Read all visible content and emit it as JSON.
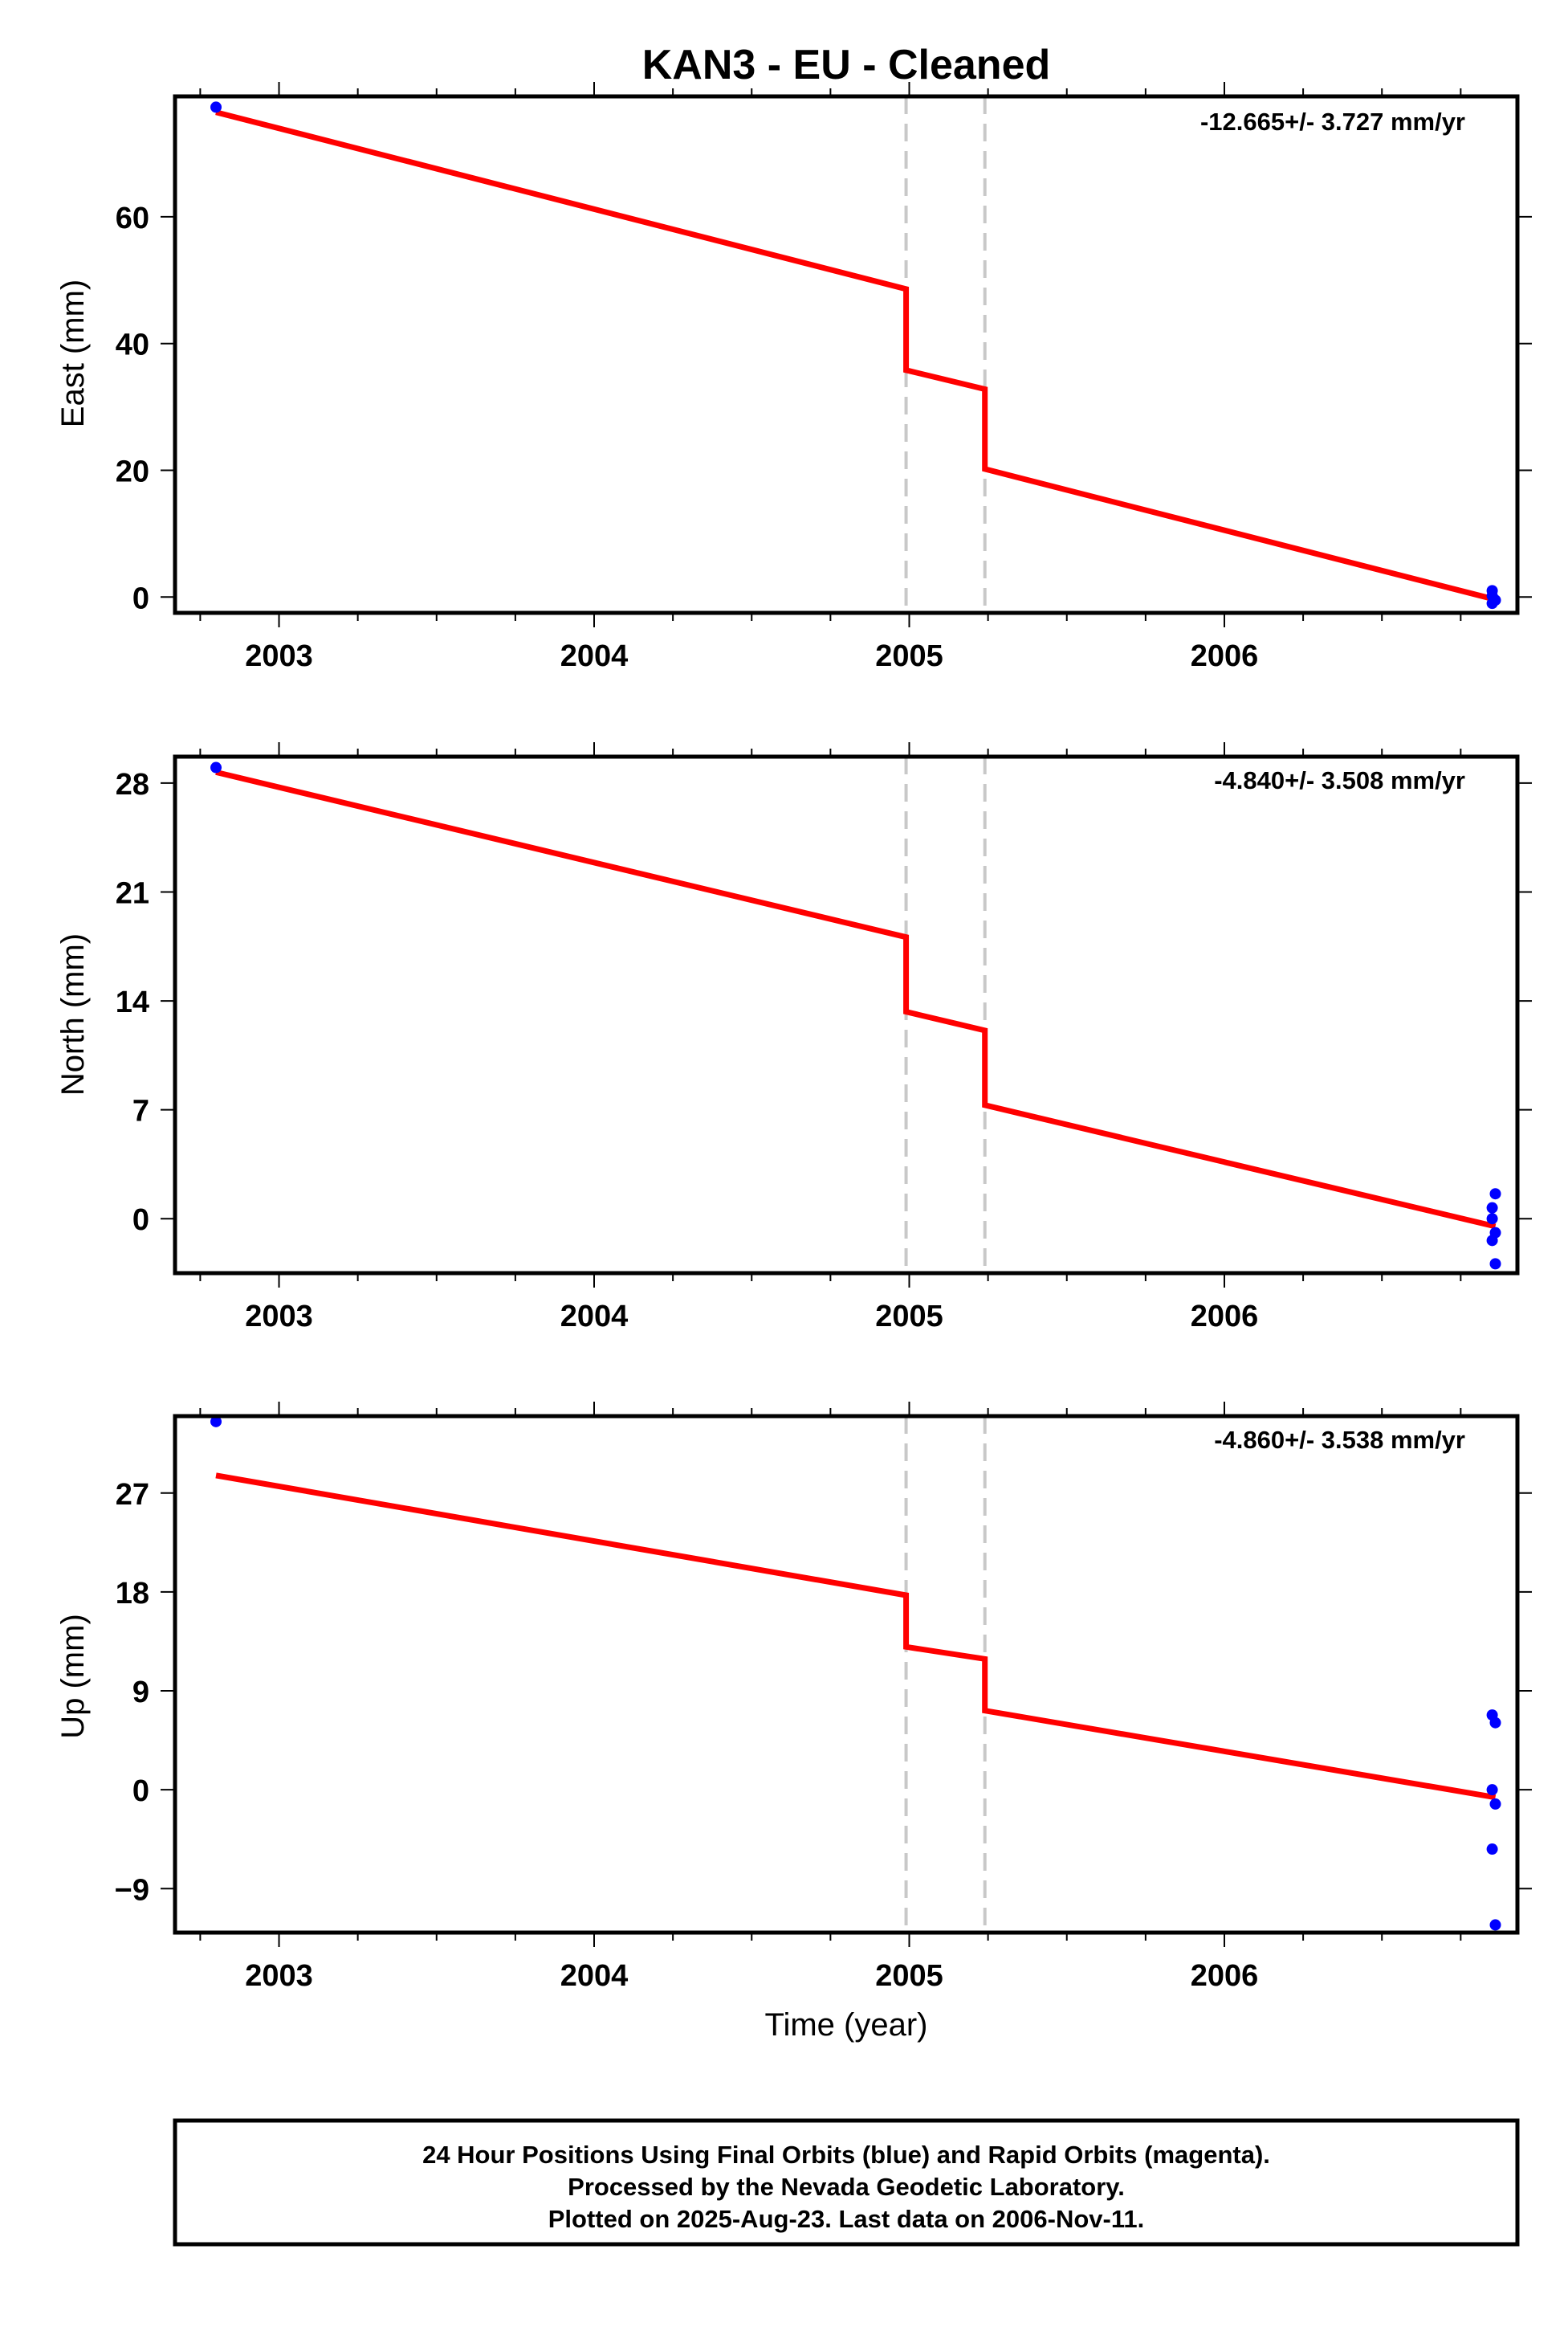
{
  "chart_data": [
    {
      "type": "scatter",
      "panel": "east",
      "title": "KAN3  - EU - Cleaned",
      "ylabel": "East (mm)",
      "xlabel": "",
      "rate_label": "-12.665+/- 3.727 mm/yr",
      "xlim": [
        2002.67,
        2006.93
      ],
      "ylim": [
        -2.5,
        79
      ],
      "yticks": [
        0,
        20,
        40,
        60
      ],
      "xticks": [
        2003,
        2004,
        2005,
        2006
      ],
      "grid": false,
      "step_lines": [
        2004.99,
        2005.24
      ],
      "series": [
        {
          "color": "#0000ff",
          "points": [
            [
              2002.8,
              77.3
            ],
            [
              2006.85,
              1.0
            ],
            [
              2006.85,
              0.2
            ],
            [
              2006.86,
              -0.5
            ],
            [
              2006.85,
              -1.0
            ]
          ]
        },
        {
          "color": "#ff0000",
          "line": [
            [
              2002.8,
              76.5
            ],
            [
              2004.99,
              48.6
            ],
            [
              2004.99,
              35.8
            ],
            [
              2005.24,
              32.8
            ],
            [
              2005.24,
              20.2
            ],
            [
              2006.86,
              -0.4
            ]
          ]
        }
      ]
    },
    {
      "type": "scatter",
      "panel": "north",
      "ylabel": "North (mm)",
      "xlabel": "",
      "rate_label": "-4.840+/- 3.508 mm/yr",
      "xlim": [
        2002.67,
        2006.93
      ],
      "ylim": [
        -3.5,
        29.7
      ],
      "yticks": [
        0,
        7,
        14,
        21,
        28
      ],
      "xticks": [
        2003,
        2004,
        2005,
        2006
      ],
      "grid": false,
      "step_lines": [
        2004.99,
        2005.24
      ],
      "series": [
        {
          "color": "#0000ff",
          "points": [
            [
              2002.8,
              29.0
            ],
            [
              2006.86,
              1.6
            ],
            [
              2006.85,
              0.7
            ],
            [
              2006.85,
              0.0
            ],
            [
              2006.86,
              -0.9
            ],
            [
              2006.85,
              -1.4
            ],
            [
              2006.86,
              -2.9
            ]
          ]
        },
        {
          "color": "#ff0000",
          "line": [
            [
              2002.8,
              28.7
            ],
            [
              2004.99,
              18.1
            ],
            [
              2004.99,
              13.3
            ],
            [
              2005.24,
              12.1
            ],
            [
              2005.24,
              7.3
            ],
            [
              2006.86,
              -0.5
            ]
          ]
        }
      ]
    },
    {
      "type": "scatter",
      "panel": "up",
      "ylabel": "Up (mm)",
      "xlabel": "Time (year)",
      "rate_label": "-4.860+/- 3.538 mm/yr",
      "xlim": [
        2002.67,
        2006.93
      ],
      "ylim": [
        -13,
        34
      ],
      "yticks": [
        -9,
        0,
        9,
        18,
        27
      ],
      "xticks": [
        2003,
        2004,
        2005,
        2006
      ],
      "grid": false,
      "step_lines": [
        2004.99,
        2005.24
      ],
      "series": [
        {
          "color": "#0000ff",
          "points": [
            [
              2002.8,
              33.5
            ],
            [
              2006.85,
              6.8
            ],
            [
              2006.86,
              6.1
            ],
            [
              2006.85,
              0.0
            ],
            [
              2006.86,
              -1.3
            ],
            [
              2006.85,
              -5.4
            ],
            [
              2006.86,
              -12.3
            ]
          ]
        },
        {
          "color": "#ff0000",
          "line": [
            [
              2002.8,
              28.6
            ],
            [
              2004.99,
              17.7
            ],
            [
              2004.99,
              13.0
            ],
            [
              2005.24,
              11.9
            ],
            [
              2005.24,
              7.2
            ],
            [
              2006.86,
              -0.7
            ]
          ]
        }
      ]
    }
  ],
  "footer": {
    "line1": "24 Hour Positions Using Final Orbits (blue) and Rapid Orbits (magenta).",
    "line2": "Processed by the Nevada Geodetic Laboratory.",
    "line3": "Plotted on 2025-Aug-23. Last data on 2006-Nov-11."
  }
}
